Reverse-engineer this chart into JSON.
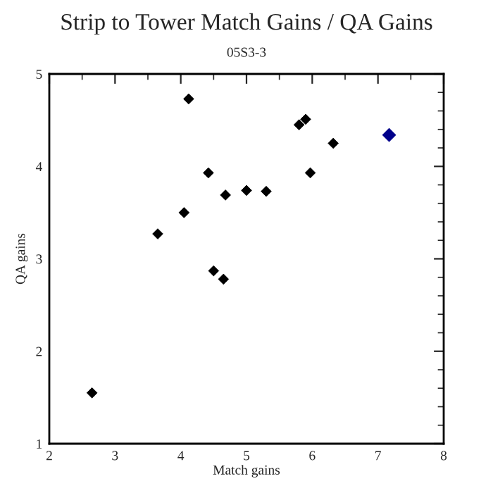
{
  "chart_data": {
    "type": "scatter",
    "title": "Strip to Tower Match Gains / QA Gains",
    "subtitle": "05S3-3",
    "xlabel": "Match gains",
    "ylabel": "QA gains",
    "series": [
      {
        "color": "#000000",
        "x": [
          2.65,
          3.65,
          4.05,
          4.12,
          4.42,
          4.5,
          4.65,
          4.68,
          5.0,
          5.3,
          5.8,
          5.9,
          5.97,
          6.32
        ],
        "values": [
          1.55,
          3.27,
          3.5,
          4.73,
          3.93,
          2.87,
          2.78,
          3.69,
          3.74,
          3.73,
          4.45,
          4.51,
          3.93,
          4.25
        ]
      },
      {
        "color": "#00008b",
        "x": [
          7.17
        ],
        "values": [
          4.34
        ]
      }
    ],
    "xlim": [
      2,
      8
    ],
    "xticks": [
      2,
      3,
      4,
      5,
      6,
      7,
      8
    ],
    "ylim": [
      1,
      5
    ],
    "yticks": [
      1,
      2,
      3,
      4,
      5
    ],
    "grid": false,
    "legend": false,
    "marker": "diamond"
  }
}
